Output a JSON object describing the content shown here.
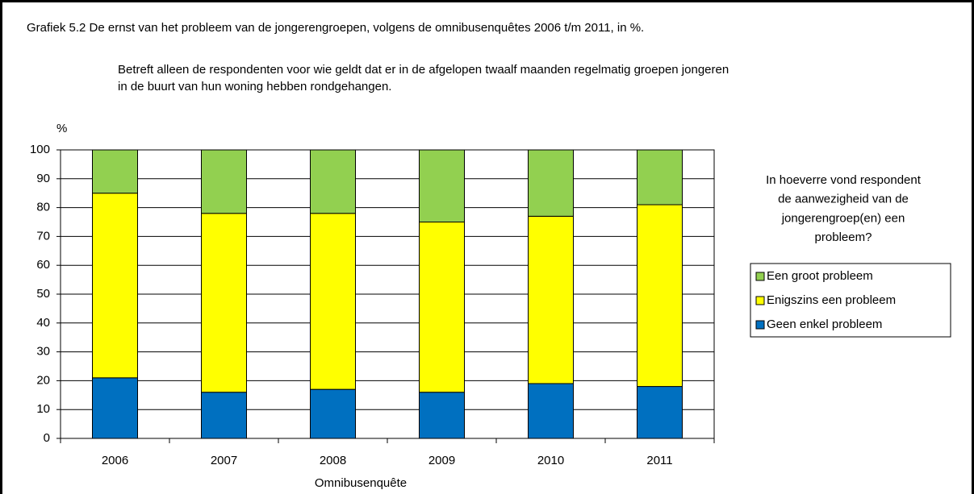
{
  "chart_data": {
    "type": "stacked_bar",
    "title": "Grafiek 5.2  De ernst van het probleem van de jongerengroepen, volgens de omnibusenquêtes 2006 t/m 2011, in %.",
    "subtitle": [
      "Betreft alleen de respondenten voor wie geldt dat er in de afgelopen twaalf maanden regelmatig groepen jongeren",
      "in de buurt van hun woning hebben rondgehangen."
    ],
    "y_label": "%",
    "x_label": "Omnibusenquête",
    "legend_title": [
      "In hoeverre vond respondent",
      "de aanwezigheid van de",
      "jongerengroep(en) een",
      "probleem?"
    ],
    "categories": [
      "2006",
      "2007",
      "2008",
      "2009",
      "2010",
      "2011"
    ],
    "series": [
      {
        "name": "Geen enkel probleem",
        "color": "#0070c0",
        "values": [
          21,
          16,
          17,
          16,
          19,
          18
        ]
      },
      {
        "name": "Enigszins een probleem",
        "color": "#ffff00",
        "values": [
          64,
          62,
          61,
          59,
          58,
          63
        ]
      },
      {
        "name": "Een groot probleem",
        "color": "#92d050",
        "values": [
          15,
          22,
          22,
          25,
          23,
          19
        ]
      }
    ],
    "ylim": [
      0,
      100
    ],
    "yticks": [
      0,
      10,
      20,
      30,
      40,
      50,
      60,
      70,
      80,
      90,
      100
    ],
    "grid": true,
    "legend": "right"
  }
}
